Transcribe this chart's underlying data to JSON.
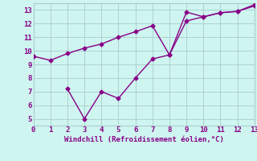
{
  "xlabel": "Windchill (Refroidissement éolien,°C)",
  "line1_x": [
    0,
    1,
    2,
    3,
    4,
    5,
    6,
    7,
    8,
    9,
    10,
    11,
    12,
    13
  ],
  "line1_y": [
    9.6,
    9.3,
    9.8,
    10.2,
    10.5,
    11.0,
    11.4,
    11.85,
    9.7,
    12.2,
    12.5,
    12.8,
    12.9,
    13.3
  ],
  "line2_x": [
    2,
    3,
    4,
    5,
    6,
    7,
    8,
    9,
    10,
    11,
    12,
    13
  ],
  "line2_y": [
    7.2,
    5.0,
    7.0,
    6.5,
    8.0,
    9.4,
    9.7,
    12.85,
    12.5,
    12.8,
    12.9,
    13.4
  ],
  "color": "#880088",
  "bg_color": "#cef5f0",
  "grid_color": "#aacccc",
  "xlim": [
    0,
    13
  ],
  "ylim": [
    4.5,
    13.5
  ],
  "xticks": [
    0,
    1,
    2,
    3,
    4,
    5,
    6,
    7,
    8,
    9,
    10,
    11,
    12,
    13
  ],
  "yticks": [
    5,
    6,
    7,
    8,
    9,
    10,
    11,
    12,
    13
  ],
  "marker": "D",
  "markersize": 2.5,
  "linewidth": 1.0,
  "xlabel_fontsize": 6.5,
  "tick_fontsize": 6.5
}
